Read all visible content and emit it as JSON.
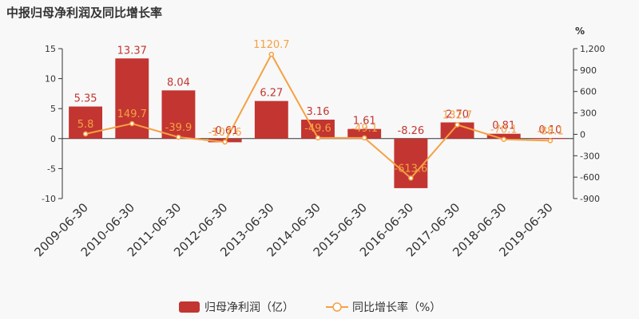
{
  "title": "中报归母净利润及同比增长率",
  "colors": {
    "bar": "#c23531",
    "line": "#f5a143",
    "bar_label": "#c23531",
    "line_label": "#f5a143"
  },
  "chart_data": {
    "type": "bar",
    "categories": [
      "2009-06-30",
      "2010-06-30",
      "2011-06-30",
      "2012-06-30",
      "2013-06-30",
      "2014-06-30",
      "2015-06-30",
      "2016-06-30",
      "2017-06-30",
      "2018-06-30",
      "2019-06-30"
    ],
    "series": [
      {
        "name": "归母净利润（亿）",
        "type": "bar",
        "axis": "left",
        "values": [
          5.35,
          13.37,
          8.04,
          -0.61,
          6.27,
          3.16,
          1.61,
          -8.26,
          2.7,
          0.81,
          0.1
        ],
        "labels": [
          "5.35",
          "13.37",
          "8.04",
          "-0.61",
          "6.27",
          "3.16",
          "1.61",
          "-8.26",
          "2.70",
          "0.81",
          "0.10"
        ]
      },
      {
        "name": "同比增长率（%）",
        "type": "line",
        "axis": "right",
        "values": [
          5.8,
          149.7,
          -39.9,
          -107.6,
          1120.7,
          -49.6,
          -49.1,
          -613.6,
          132.7,
          -70.1,
          -88.1
        ],
        "labels": [
          "5.8",
          "149.7",
          "-39.9",
          "-107.6",
          "1120.7",
          "-49.6",
          "-49.1",
          "-613.6",
          "132.7",
          "-70.1",
          "-88.1"
        ]
      }
    ],
    "y_left": {
      "range": [
        -10,
        15
      ],
      "ticks": [
        15,
        10,
        5,
        0,
        -5,
        -10
      ]
    },
    "y_right": {
      "unit": "%",
      "range": [
        -900,
        1200
      ],
      "ticks": [
        "1,200",
        "900",
        "600",
        "300",
        "0",
        "-300",
        "-600",
        "-900"
      ],
      "tick_values": [
        1200,
        900,
        600,
        300,
        0,
        -300,
        -600,
        -900
      ]
    },
    "legend_position": "bottom"
  }
}
